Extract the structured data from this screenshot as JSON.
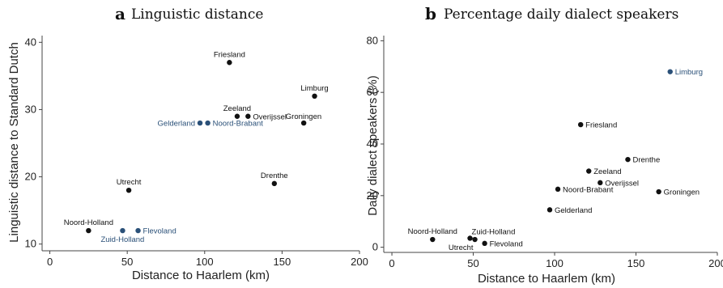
{
  "chart_data": [
    {
      "type": "scatter",
      "panel_letter": "a",
      "title": "Linguistic distance",
      "xlabel": "Distance to Haarlem (km)",
      "ylabel": "Linguistic distance to Standard Dutch",
      "xlim": [
        -5,
        200
      ],
      "ylim": [
        9,
        41
      ],
      "xticks": [
        0,
        50,
        100,
        150,
        200
      ],
      "yticks": [
        10,
        20,
        30,
        40
      ],
      "grid": false,
      "colors": {
        "default": "#111111",
        "highlight": "#2a5078"
      },
      "points": [
        {
          "label": "Friesland",
          "x": 116,
          "y": 37,
          "highlight": false,
          "label_pos": "above"
        },
        {
          "label": "Limburg",
          "x": 171,
          "y": 32,
          "highlight": false,
          "label_pos": "above"
        },
        {
          "label": "Zeeland",
          "x": 121,
          "y": 29,
          "highlight": false,
          "label_pos": "above"
        },
        {
          "label": "Overijssel",
          "x": 128,
          "y": 29,
          "highlight": false,
          "label_pos": "right"
        },
        {
          "label": "Groningen",
          "x": 164,
          "y": 28,
          "highlight": false,
          "label_pos": "above-left"
        },
        {
          "label": "Gelderland",
          "x": 97,
          "y": 28,
          "highlight": true,
          "label_pos": "left"
        },
        {
          "label": "Noord-Brabant",
          "x": 102,
          "y": 28,
          "highlight": true,
          "label_pos": "right"
        },
        {
          "label": "Drenthe",
          "x": 145,
          "y": 19,
          "highlight": false,
          "label_pos": "above"
        },
        {
          "label": "Utrecht",
          "x": 51,
          "y": 18,
          "highlight": false,
          "label_pos": "above"
        },
        {
          "label": "Noord-Holland",
          "x": 25,
          "y": 12,
          "highlight": false,
          "label_pos": "above"
        },
        {
          "label": "Zuid-Holland",
          "x": 47,
          "y": 12,
          "highlight": true,
          "label_pos": "below"
        },
        {
          "label": "Flevoland",
          "x": 57,
          "y": 12,
          "highlight": true,
          "label_pos": "right"
        }
      ]
    },
    {
      "type": "scatter",
      "panel_letter": "b",
      "title": "Percentage daily dialect speakers",
      "xlabel": "Distance to Haarlem (km)",
      "ylabel": "Daily dialect speakers (%)",
      "xlim": [
        -5,
        200
      ],
      "ylim": [
        -2,
        82
      ],
      "xticks": [
        0,
        50,
        100,
        150,
        200
      ],
      "yticks": [
        0,
        20,
        40,
        60,
        80
      ],
      "grid": false,
      "colors": {
        "default": "#111111",
        "highlight": "#2a5078"
      },
      "points": [
        {
          "label": "Limburg",
          "x": 171,
          "y": 68,
          "highlight": true,
          "label_pos": "right"
        },
        {
          "label": "Friesland",
          "x": 116,
          "y": 47.5,
          "highlight": false,
          "label_pos": "right"
        },
        {
          "label": "Drenthe",
          "x": 145,
          "y": 34,
          "highlight": false,
          "label_pos": "right"
        },
        {
          "label": "Zeeland",
          "x": 121,
          "y": 29.5,
          "highlight": false,
          "label_pos": "right"
        },
        {
          "label": "Overijssel",
          "x": 128,
          "y": 25,
          "highlight": false,
          "label_pos": "right"
        },
        {
          "label": "Noord-Brabant",
          "x": 102,
          "y": 22.5,
          "highlight": false,
          "label_pos": "right"
        },
        {
          "label": "Groningen",
          "x": 164,
          "y": 21.5,
          "highlight": false,
          "label_pos": "right"
        },
        {
          "label": "Gelderland",
          "x": 97,
          "y": 14.5,
          "highlight": false,
          "label_pos": "right"
        },
        {
          "label": "Noord-Holland",
          "x": 25,
          "y": 3,
          "highlight": false,
          "label_pos": "above"
        },
        {
          "label": "Zuid-Holland",
          "x": 48,
          "y": 3.5,
          "highlight": false,
          "label_pos": "above-right"
        },
        {
          "label": "Utrecht",
          "x": 51,
          "y": 3,
          "highlight": false,
          "label_pos": "below-left"
        },
        {
          "label": "Flevoland",
          "x": 57,
          "y": 1.5,
          "highlight": false,
          "label_pos": "right"
        }
      ]
    }
  ]
}
